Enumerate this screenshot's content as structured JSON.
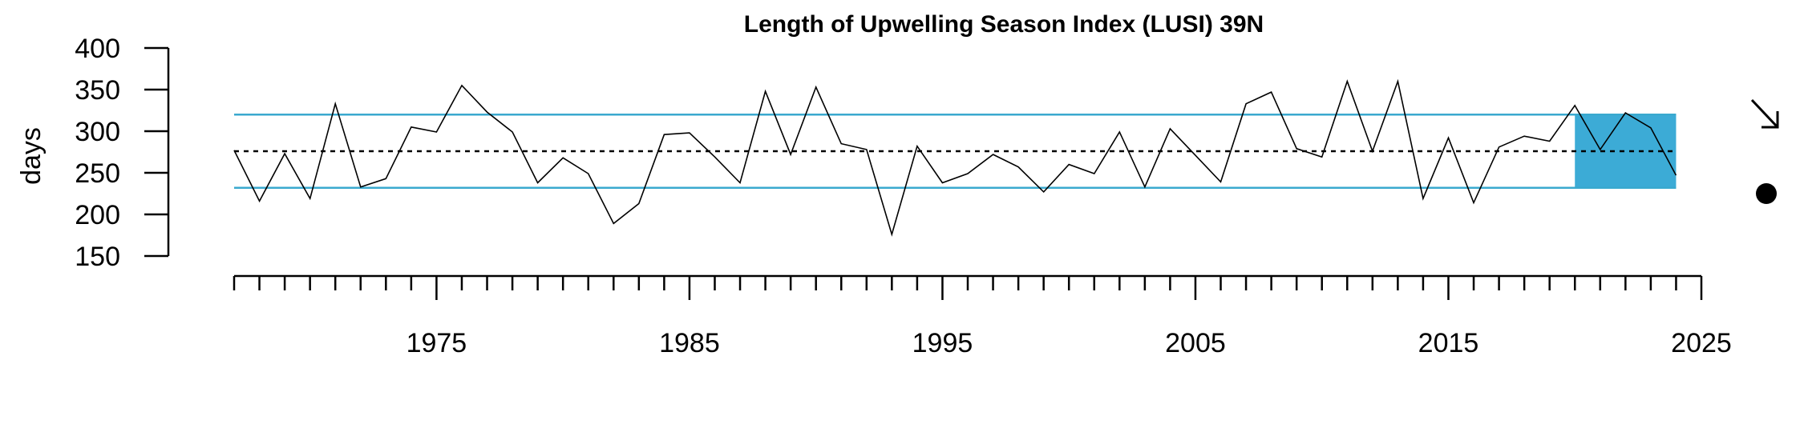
{
  "chart_data": {
    "type": "line",
    "title": "Length of Upwelling Season Index (LUSI) 39N",
    "xlabel": "",
    "ylabel": "days",
    "xlim": [
      1967,
      2025
    ],
    "ylim": [
      150,
      400
    ],
    "x_tick_labels": [
      1975,
      1985,
      1995,
      2005,
      2015,
      2025
    ],
    "y_tick_labels": [
      150,
      200,
      250,
      300,
      350,
      400
    ],
    "series": [
      {
        "x": [
          1967,
          1968,
          1969,
          1970,
          1971,
          1972,
          1973,
          1974,
          1975,
          1976,
          1977,
          1978,
          1979,
          1980,
          1981,
          1982,
          1983,
          1984,
          1985,
          1986,
          1987,
          1988,
          1989,
          1990,
          1991,
          1992,
          1993,
          1994,
          1995,
          1996,
          1997,
          1998,
          1999,
          2000,
          2001,
          2002,
          2003,
          2004,
          2005,
          2006,
          2007,
          2008,
          2009,
          2010,
          2011,
          2012,
          2013,
          2014,
          2015,
          2016,
          2017,
          2018,
          2019,
          2020,
          2021,
          2022,
          2023,
          2024
        ],
        "values": [
          277,
          216,
          273,
          219,
          333,
          233,
          243,
          305,
          299,
          355,
          323,
          299,
          238,
          268,
          249,
          189,
          213,
          296,
          298,
          269,
          238,
          348,
          272,
          353,
          285,
          278,
          176,
          282,
          238,
          249,
          272,
          257,
          227,
          260,
          249,
          299,
          233,
          303,
          271,
          239,
          333,
          347,
          279,
          269,
          360,
          276,
          360,
          219,
          292,
          214,
          281,
          294,
          288,
          331,
          278,
          322,
          304,
          247
        ]
      }
    ],
    "mean_line": 276,
    "upper_line": 320,
    "lower_line": 232,
    "highlight_x_range": [
      2020,
      2024
    ],
    "colors": {
      "reference_lines": "#3aa9cf",
      "highlight_fill": "#3cabd6",
      "series_line": "#000000",
      "mean_line": "#000000"
    },
    "legend_symbols": {
      "trend_arrow": "arrow-down-right-icon",
      "mean_marker": "filled-circle-icon"
    }
  }
}
